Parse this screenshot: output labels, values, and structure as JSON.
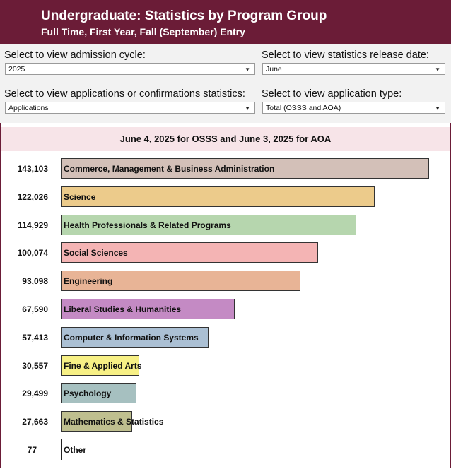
{
  "header": {
    "title": "Undergraduate: Statistics by Program Group",
    "subtitle": "Full Time, First Year, Fall (September) Entry"
  },
  "filters": {
    "cycle_label": "Select to view admission cycle:",
    "cycle_value": "2025",
    "release_label": "Select to view statistics release date:",
    "release_value": "June",
    "stat_label": "Select to view applications or confirmations statistics:",
    "stat_value": "Applications",
    "type_label": "Select to view application type:",
    "type_value": "Total (OSSS and AOA)"
  },
  "banner": "June 4, 2025 for OSSS and June 3, 2025 for AOA",
  "chart_data": {
    "type": "bar",
    "orientation": "horizontal",
    "categories": [
      "Commerce, Management & Business Administration",
      "Science",
      "Health Professionals & Related Programs",
      "Social Sciences",
      "Engineering",
      "Liberal Studies & Humanities",
      "Computer & Information Systems",
      "Fine & Applied Arts",
      "Psychology",
      "Mathematics & Statistics",
      "Other"
    ],
    "values": [
      143103,
      122026,
      114929,
      100074,
      93098,
      67590,
      57413,
      30557,
      29499,
      27663,
      77
    ],
    "value_labels": [
      "143,103",
      "122,026",
      "114,929",
      "100,074",
      "93,098",
      "67,590",
      "57,413",
      "30,557",
      "29,499",
      "27,663",
      "77"
    ],
    "colors": [
      "#d3c0b8",
      "#eccb8b",
      "#b6d6ae",
      "#f4b4b4",
      "#e8b496",
      "#c48ac4",
      "#abc0d4",
      "#f7f085",
      "#a6c0c0",
      "#bfbf8f",
      "#d0d0d0"
    ]
  }
}
